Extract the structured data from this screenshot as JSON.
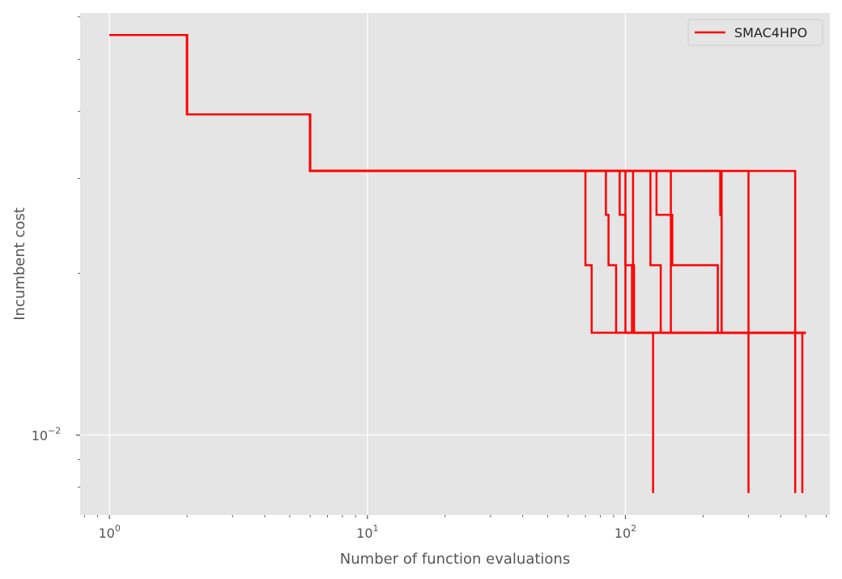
{
  "chart_data": {
    "type": "line",
    "step": true,
    "title": "",
    "xlabel": "Number of function evaluations",
    "ylabel": "Incumbent cost",
    "xscale": "log",
    "yscale": "log",
    "xlim": [
      0.77,
      620
    ],
    "ylim": [
      0.0071,
      0.061
    ],
    "x_ticks": [
      {
        "base": "10",
        "exp": "0",
        "value": 1
      },
      {
        "base": "10",
        "exp": "1",
        "value": 10
      },
      {
        "base": "10",
        "exp": "2",
        "value": 100
      }
    ],
    "y_ticks": [
      {
        "base": "10",
        "exp": "−2",
        "value": 0.01
      }
    ],
    "grid": true,
    "legend": {
      "position": "upper right",
      "entries": [
        {
          "label": "SMAC4HPO",
          "color": "#ff0000"
        }
      ]
    },
    "series_color": "#ff0000",
    "series": [
      {
        "x": [
          1,
          2,
          6,
          70,
          74,
          500
        ],
        "y": [
          0.0555,
          0.0395,
          0.031,
          0.0207,
          0.0155,
          0.0155
        ]
      },
      {
        "x": [
          1,
          2,
          6,
          84,
          86,
          88,
          92,
          500
        ],
        "y": [
          0.0555,
          0.0395,
          0.031,
          0.0257,
          0.0207,
          0.0207,
          0.0155,
          0.0155
        ]
      },
      {
        "x": [
          1,
          2,
          6,
          95,
          100,
          106,
          500
        ],
        "y": [
          0.0555,
          0.0395,
          0.031,
          0.0257,
          0.0207,
          0.0155,
          0.0155
        ]
      },
      {
        "x": [
          1,
          2,
          6,
          107,
          108,
          500
        ],
        "y": [
          0.0555,
          0.0395,
          0.031,
          0.0207,
          0.0155,
          0.0155
        ]
      },
      {
        "x": [
          1,
          2,
          6,
          125,
          137,
          500
        ],
        "y": [
          0.0555,
          0.0395,
          0.031,
          0.0207,
          0.0155,
          0.0155
        ]
      },
      {
        "x": [
          1,
          2,
          6,
          132,
          150,
          500
        ],
        "y": [
          0.0555,
          0.0395,
          0.031,
          0.0257,
          0.0155,
          0.0155
        ]
      },
      {
        "x": [
          1,
          2,
          6,
          150,
          152,
          225,
          228,
          500
        ],
        "y": [
          0.0555,
          0.0395,
          0.031,
          0.0257,
          0.0207,
          0.0207,
          0.0155,
          0.0155
        ]
      },
      {
        "x": [
          1,
          2,
          6,
          233,
          236,
          500
        ],
        "y": [
          0.0555,
          0.0395,
          0.031,
          0.0257,
          0.0155,
          0.0155
        ]
      },
      {
        "x": [
          1,
          2,
          6,
          100,
          128,
          128
        ],
        "y": [
          0.0555,
          0.0395,
          0.031,
          0.0155,
          0.0155,
          0.0078
        ]
      },
      {
        "x": [
          1,
          2,
          6,
          236,
          300,
          300
        ],
        "y": [
          0.0555,
          0.0395,
          0.031,
          0.0155,
          0.0155,
          0.0078
        ]
      },
      {
        "x": [
          1,
          2,
          6,
          300,
          455,
          455
        ],
        "y": [
          0.0555,
          0.0395,
          0.031,
          0.0155,
          0.0155,
          0.0078
        ]
      },
      {
        "x": [
          1,
          2,
          6,
          455,
          485,
          485
        ],
        "y": [
          0.0555,
          0.0395,
          0.031,
          0.0155,
          0.0155,
          0.0078
        ]
      }
    ]
  }
}
